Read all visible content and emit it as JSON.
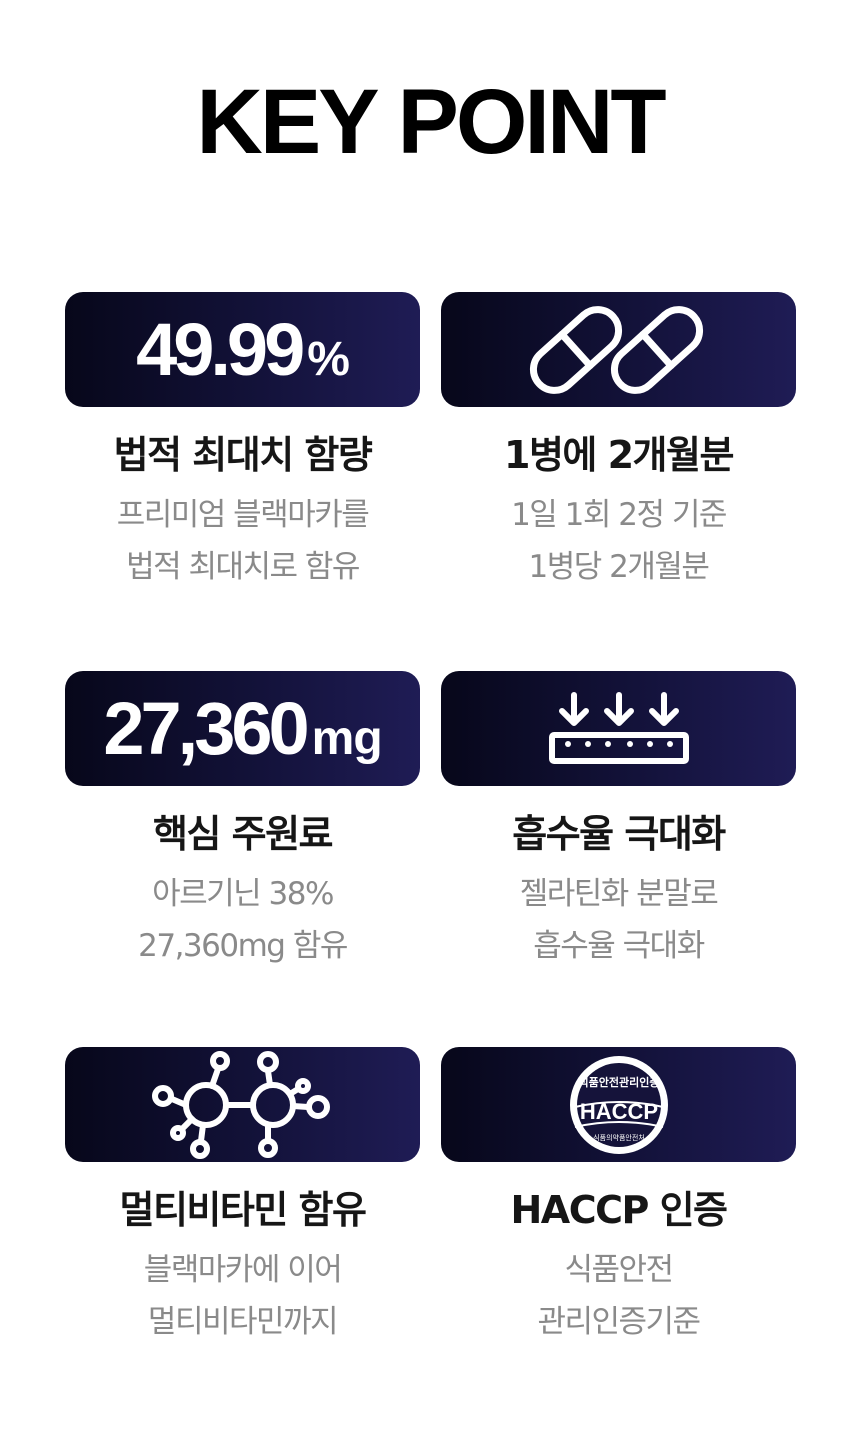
{
  "title": "KEY POINT",
  "cards": [
    {
      "badge_value": "49.99",
      "badge_unit": "%",
      "title": "법적 최대치 함량",
      "desc_lines": [
        "프리미엄 블랙마카를",
        "법적 최대치로 함유"
      ]
    },
    {
      "badge_icon": "capsule-pills-icon",
      "title": "1병에 2개월분",
      "desc_lines": [
        "1일 1회 2정 기준",
        "1병당 2개월분"
      ]
    },
    {
      "badge_value": "27,360",
      "badge_unit": "mg",
      "title": "핵심 주원료",
      "desc_lines": [
        "아르기닌 38%",
        "27,360mg 함유"
      ]
    },
    {
      "badge_icon": "absorption-arrows-icon",
      "title": "흡수율 극대화",
      "desc_lines": [
        "젤라틴화 분말로",
        "흡수율 극대화"
      ]
    },
    {
      "badge_icon": "molecule-icon",
      "title": "멀티비타민 함유",
      "desc_lines": [
        "블랙마카에 이어",
        "멀티비타민까지"
      ]
    },
    {
      "badge_icon": "haccp-seal-icon",
      "seal": {
        "top_text": "식품안전관리인증",
        "main_text": "HACCP",
        "bottom_text": "식품의약품안전처"
      },
      "title": "HACCP 인증",
      "desc_lines": [
        "식품안전",
        "관리인증기준"
      ]
    }
  ]
}
